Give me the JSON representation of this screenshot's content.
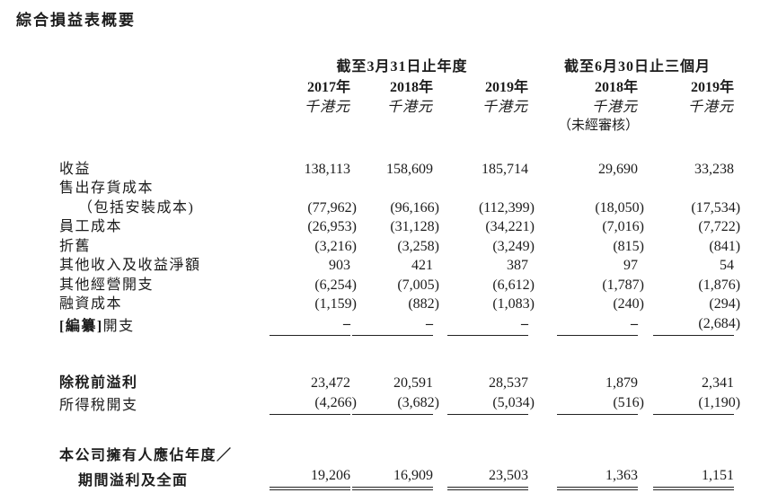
{
  "title": "綜合損益表概要",
  "table": {
    "groups": [
      {
        "label": "截至3月31日止年度",
        "span": 3
      },
      {
        "label": "截至6月30日止三個月",
        "span": 2
      }
    ],
    "columns": [
      {
        "year": "2017年",
        "unit": "千港元",
        "note": ""
      },
      {
        "year": "2018年",
        "unit": "千港元",
        "note": ""
      },
      {
        "year": "2019年",
        "unit": "千港元",
        "note": ""
      },
      {
        "year": "2018年",
        "unit": "千港元",
        "note": "（未經審核）"
      },
      {
        "year": "2019年",
        "unit": "千港元",
        "note": ""
      }
    ],
    "rows": [
      {
        "label": "收益",
        "bold": false,
        "indent": false,
        "rule": "none",
        "gap_after": 0,
        "values": [
          "138,113",
          "158,609",
          "185,714",
          "29,690",
          "33,238"
        ]
      },
      {
        "label": "售出存貨成本",
        "bold": false,
        "indent": false,
        "rule": "none",
        "gap_after": 0,
        "values": [
          "",
          "",
          "",
          "",
          ""
        ]
      },
      {
        "label": "（包括安裝成本)",
        "bold": false,
        "indent": true,
        "rule": "none",
        "gap_after": 0,
        "values": [
          "(77,962)",
          "(96,166)",
          "(112,399)",
          "(18,050)",
          "(17,534)"
        ]
      },
      {
        "label": "員工成本",
        "bold": false,
        "indent": false,
        "rule": "none",
        "gap_after": 0,
        "values": [
          "(26,953)",
          "(31,128)",
          "(34,221)",
          "(7,016)",
          "(7,722)"
        ]
      },
      {
        "label": "折舊",
        "bold": false,
        "indent": false,
        "rule": "none",
        "gap_after": 0,
        "values": [
          "(3,216)",
          "(3,258)",
          "(3,249)",
          "(815)",
          "(841)"
        ]
      },
      {
        "label": "其他收入及收益淨額",
        "bold": false,
        "indent": false,
        "rule": "none",
        "gap_after": 0,
        "values": [
          "903",
          "421",
          "387",
          "97",
          "54"
        ]
      },
      {
        "label": "其他經營開支",
        "bold": false,
        "indent": false,
        "rule": "none",
        "gap_after": 0,
        "values": [
          "(6,254)",
          "(7,005)",
          "(6,612)",
          "(1,787)",
          "(1,876)"
        ]
      },
      {
        "label": "融資成本",
        "bold": false,
        "indent": false,
        "rule": "none",
        "gap_after": 0,
        "values": [
          "(1,159)",
          "(882)",
          "(1,083)",
          "(240)",
          "(294)"
        ]
      },
      {
        "label_prefix_bold": "[編纂]",
        "label": "開支",
        "bold": false,
        "indent": false,
        "rule": "single",
        "gap_after": 42,
        "values": [
          "–",
          "–",
          "–",
          "–",
          "(2,684)"
        ]
      },
      {
        "label": "除稅前溢利",
        "bold": true,
        "indent": false,
        "rule": "none",
        "gap_after": 0,
        "values": [
          "23,472",
          "20,591",
          "28,537",
          "1,879",
          "2,341"
        ]
      },
      {
        "label": "所得稅開支",
        "bold": false,
        "indent": false,
        "rule": "single",
        "gap_after": 35,
        "values": [
          "(4,266)",
          "(3,682)",
          "(5,034)",
          "(516)",
          "(1,190)"
        ]
      },
      {
        "label": "本公司擁有人應佔年度／",
        "bold": true,
        "indent": false,
        "rule": "none",
        "gap_after": 0,
        "values": [
          "",
          "",
          "",
          "",
          ""
        ]
      },
      {
        "label": "期間溢利及全面",
        "bold": true,
        "indent": true,
        "rule": "double",
        "gap_after": 0,
        "values": [
          "19,206",
          "16,909",
          "23,503",
          "1,363",
          "1,151"
        ]
      }
    ]
  }
}
